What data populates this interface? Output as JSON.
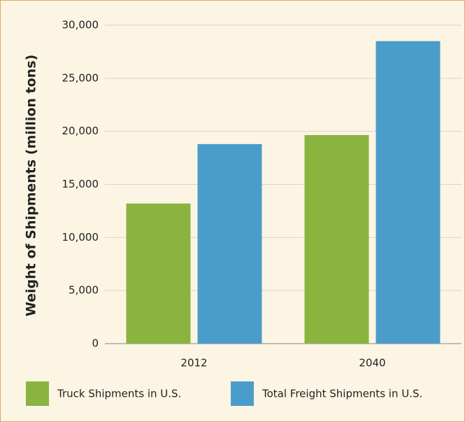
{
  "chart_data": {
    "type": "bar",
    "ylabel": "Weight of Shipments (million tons)",
    "categories": [
      "2012",
      "2040"
    ],
    "series": [
      {
        "name": "Truck Shipments in U.S.",
        "color": "#8ab43f",
        "values": [
          13200,
          19650
        ]
      },
      {
        "name": "Total Freight Shipments in U.S.",
        "color": "#4b9dc9",
        "values": [
          18800,
          28500
        ]
      }
    ],
    "ylim": [
      0,
      30000
    ],
    "yticks": [
      0,
      {
        "value": 5000,
        "label": "5,000"
      },
      {
        "value": 10000,
        "label": "10,000"
      },
      {
        "value": 15000,
        "label": "15,000"
      },
      {
        "value": 20000,
        "label": "20,000"
      },
      {
        "value": 25000,
        "label": "25,000"
      },
      {
        "value": 30000,
        "label": "30,000"
      }
    ],
    "grid": true
  }
}
